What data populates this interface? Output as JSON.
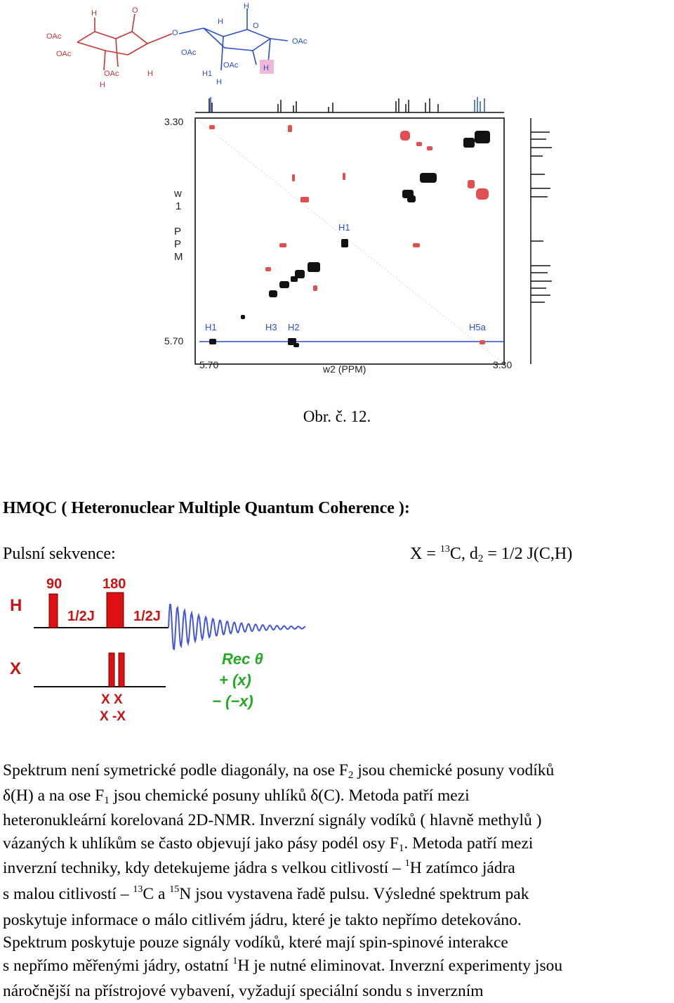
{
  "molecule": {
    "labels": {
      "oac": "OAc",
      "o": "O",
      "h": "H",
      "h1": "H1"
    },
    "colors": {
      "red_part": "#cc3333",
      "blue_part": "#2a4fd0",
      "highlight": "#f0b8d8"
    }
  },
  "spectrum": {
    "y_top": "3.30",
    "y_bottom": "5.70",
    "x_left": "5.70",
    "x_right": "3.30",
    "x_axis_label": "w2 (PPM)",
    "y_axis_label": [
      "w",
      "1",
      "P",
      "P",
      "M"
    ],
    "peak_labels": {
      "h1_mid": "H1",
      "h1_low": "H1",
      "h3": "H3",
      "h2": "H2",
      "h5a": "H5a"
    },
    "colors": {
      "positive": "#111111",
      "negative": "#e05050",
      "trace": "#2a4fd0"
    }
  },
  "caption": "Obr. č. 12.",
  "heading": "HMQC ( Heteronuclear Multiple Quantum Coherence ):",
  "pulse_label": "Pulsní sekvence:",
  "formula": {
    "x_eq": "X = ",
    "mass": "13",
    "element": "C,  d",
    "sub": "2",
    "rest": " = 1/2 J(C,H)"
  },
  "sequence": {
    "h_label": "H",
    "x_label": "X",
    "p90": "90",
    "p180": "180",
    "delay1": "1/2J",
    "delay2": "1/2J",
    "phase_row1": "X  X",
    "phase_row2": "X -X",
    "rec_label": "Rec θ",
    "rec_row1": "+ (x)",
    "rec_row2": "− (−x)",
    "colors": {
      "pulse": "#dd1111",
      "labels": "#cc1111",
      "receiver": "#22aa22",
      "fid": "#4455dd"
    }
  },
  "paragraph": {
    "l1a": "Spektrum není symetrické podle diagonály, na ose F",
    "l1s": "2",
    "l1b": " jsou chemické posuny vodíků",
    "l2a": "δ(H) a na ose F",
    "l2s": "1",
    "l2b": " jsou chemické posuny uhlíků δ(C). Metoda patří mezi",
    "l3": "heteronukleární korelovaná 2D-NMR. Inverzní signály vodíků ( hlavně methylů )",
    "l4a": "vázaných k uhlíkům se často objevují jako pásy podél osy F",
    "l4s": "1",
    "l4b": ". Metoda patří mezi",
    "l5a": "inverzní techniky, kdy detekujeme jádra s velkou citlivostí  – ",
    "l5p": "1",
    "l5b": "H zatímco jádra",
    "l6a": "s malou citlivostí  – ",
    "l6p1": "13",
    "l6b": "C a ",
    "l6p2": "15",
    "l6c": "N jsou vystavena řadě pulsu. Výsledné spektrum pak",
    "l7": "poskytuje informace o málo citlivém jádru, které je takto nepřímo detekováno.",
    "l8": "Spektrum poskytuje pouze signály vodíků, které mají spin-spinové interakce",
    "l9a": "s nepřímo měřenými jádry, ostatní ",
    "l9p": "1",
    "l9b": "H je nutné eliminovat. Inverzní experimenty jsou",
    "l10": "náročnější na přístrojové vybavení, vyžadují speciální sondu s inverzním"
  }
}
